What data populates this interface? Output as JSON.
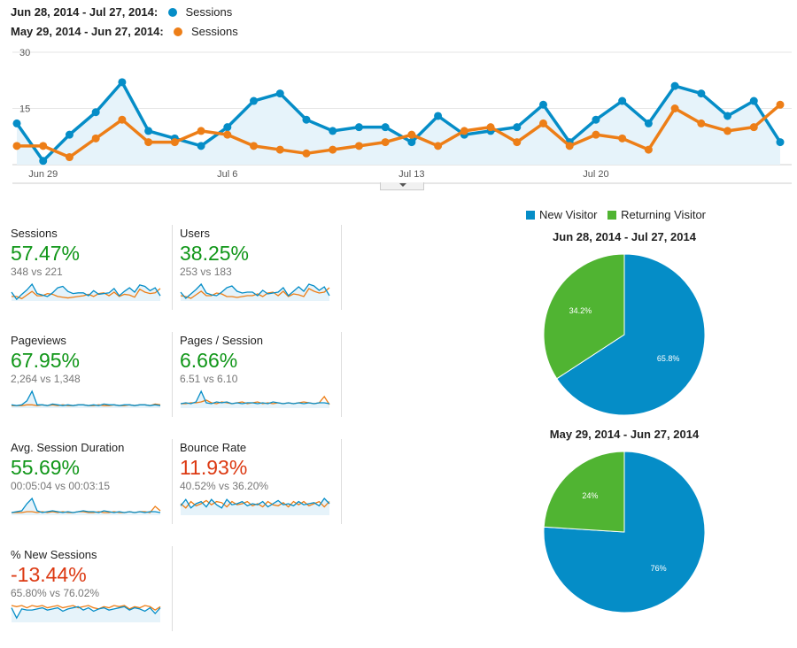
{
  "legend": [
    {
      "range": "Jun 28, 2014 - Jul 27, 2014:",
      "series": "Sessions",
      "color": "#058dc7"
    },
    {
      "range": "May 29, 2014 - Jun 27, 2014:",
      "series": "Sessions",
      "color": "#ed7e17"
    }
  ],
  "chart_data": {
    "type": "line",
    "ylim": [
      0,
      30
    ],
    "y_ticks": [
      "30",
      "15"
    ],
    "x_tick_labels": [
      {
        "index": 1,
        "label": "Jun 29"
      },
      {
        "index": 8,
        "label": "Jul 6"
      },
      {
        "index": 15,
        "label": "Jul 13"
      },
      {
        "index": 22,
        "label": "Jul 20"
      }
    ],
    "series": [
      {
        "name": "Sessions",
        "color": "#058dc7",
        "values": [
          11,
          1,
          8,
          14,
          22,
          9,
          7,
          5,
          10,
          17,
          19,
          12,
          9,
          10,
          10,
          6,
          13,
          8,
          9,
          10,
          16,
          6,
          12,
          17,
          11,
          21,
          19,
          13,
          17,
          6
        ]
      },
      {
        "name": "Sessions",
        "color": "#ed7e17",
        "values": [
          5,
          5,
          2,
          7,
          12,
          6,
          6,
          9,
          8,
          5,
          4,
          3,
          4,
          5,
          6,
          8,
          5,
          9,
          10,
          6,
          11,
          5,
          8,
          7,
          4,
          15,
          11,
          9,
          10,
          16
        ]
      }
    ]
  },
  "metrics": [
    {
      "name": "Sessions",
      "change": "57.47%",
      "direction": "up",
      "compare": "348 vs 221",
      "spark": {
        "a": [
          11,
          1,
          8,
          14,
          22,
          9,
          7,
          5,
          10,
          17,
          19,
          12,
          9,
          10,
          10,
          6,
          13,
          8,
          9,
          10,
          16,
          6,
          12,
          17,
          11,
          21,
          19,
          13,
          17,
          6
        ],
        "b": [
          5,
          5,
          2,
          7,
          12,
          6,
          6,
          9,
          8,
          5,
          4,
          3,
          4,
          5,
          6,
          8,
          5,
          9,
          10,
          6,
          11,
          5,
          8,
          7,
          4,
          15,
          11,
          9,
          10,
          16
        ]
      }
    },
    {
      "name": "Users",
      "change": "38.25%",
      "direction": "up",
      "compare": "253 vs 183",
      "spark": {
        "a": [
          9,
          2,
          7,
          12,
          18,
          8,
          6,
          5,
          9,
          14,
          16,
          10,
          8,
          9,
          9,
          5,
          11,
          7,
          8,
          9,
          14,
          5,
          10,
          15,
          10,
          18,
          16,
          11,
          15,
          5
        ],
        "b": [
          5,
          4,
          2,
          6,
          10,
          5,
          5,
          8,
          7,
          4,
          4,
          3,
          4,
          5,
          5,
          7,
          4,
          8,
          9,
          5,
          10,
          4,
          7,
          6,
          4,
          13,
          10,
          8,
          9,
          14
        ]
      }
    },
    {
      "name": "Pageviews",
      "change": "67.95%",
      "direction": "up",
      "compare": "2,264 vs 1,348",
      "spark": {
        "a": [
          3,
          2,
          3,
          8,
          20,
          3,
          3,
          2,
          4,
          3,
          2,
          3,
          2,
          3,
          3,
          2,
          3,
          2,
          4,
          3,
          3,
          2,
          3,
          3,
          2,
          3,
          3,
          2,
          3,
          2
        ],
        "b": [
          2,
          2,
          2,
          3,
          3,
          2,
          3,
          2,
          3,
          2,
          3,
          2,
          2,
          3,
          3,
          2,
          2,
          3,
          2,
          2,
          3,
          2,
          2,
          3,
          2,
          3,
          3,
          2,
          4,
          3
        ]
      }
    },
    {
      "name": "Pages / Session",
      "change": "6.66%",
      "direction": "up",
      "compare": "6.51 vs 6.10",
      "spark": {
        "a": [
          4,
          5,
          4,
          6,
          18,
          5,
          4,
          6,
          5,
          6,
          4,
          5,
          4,
          5,
          5,
          4,
          5,
          4,
          6,
          5,
          4,
          5,
          4,
          5,
          4,
          5,
          4,
          5,
          5,
          4
        ],
        "b": [
          4,
          4,
          5,
          5,
          6,
          8,
          5,
          4,
          6,
          5,
          4,
          5,
          6,
          4,
          5,
          6,
          4,
          5,
          4,
          5,
          4,
          5,
          4,
          5,
          6,
          5,
          4,
          5,
          12,
          3
        ]
      }
    },
    {
      "name": "Avg. Session Duration",
      "change": "55.69%",
      "direction": "up",
      "compare": "00:05:04 vs 00:03:15",
      "spark": {
        "a": [
          2,
          3,
          4,
          12,
          18,
          4,
          2,
          3,
          4,
          3,
          2,
          3,
          2,
          3,
          4,
          3,
          3,
          2,
          4,
          3,
          2,
          3,
          2,
          3,
          2,
          3,
          2,
          3,
          3,
          2
        ],
        "b": [
          2,
          2,
          2,
          3,
          3,
          2,
          3,
          2,
          3,
          2,
          3,
          2,
          2,
          3,
          3,
          2,
          2,
          3,
          2,
          2,
          3,
          2,
          2,
          3,
          2,
          3,
          3,
          2,
          9,
          4
        ]
      }
    },
    {
      "name": "Bounce Rate",
      "change": "11.93%",
      "direction": "down",
      "compare": "40.52% vs 36.20%",
      "spark": {
        "a": [
          8,
          14,
          6,
          10,
          12,
          7,
          14,
          9,
          6,
          14,
          9,
          10,
          12,
          8,
          10,
          9,
          12,
          7,
          10,
          13,
          9,
          10,
          8,
          12,
          9,
          10,
          11,
          8,
          15,
          10
        ],
        "b": [
          10,
          6,
          12,
          8,
          10,
          13,
          9,
          12,
          11,
          7,
          12,
          9,
          10,
          12,
          8,
          10,
          7,
          12,
          9,
          8,
          11,
          7,
          12,
          9,
          12,
          8,
          10,
          12,
          7,
          12
        ]
      }
    },
    {
      "name": "% New Sessions",
      "change": "-13.44%",
      "direction": "down",
      "compare": "65.80% vs 76.02%",
      "spark": {
        "a": [
          12,
          3,
          11,
          10,
          10,
          11,
          12,
          10,
          11,
          12,
          9,
          11,
          12,
          13,
          10,
          12,
          9,
          11,
          12,
          10,
          11,
          12,
          13,
          10,
          12,
          11,
          9,
          12,
          7,
          12
        ],
        "b": [
          14,
          13,
          14,
          12,
          14,
          13,
          14,
          12,
          13,
          14,
          12,
          13,
          14,
          12,
          13,
          14,
          12,
          11,
          13,
          12,
          14,
          13,
          14,
          11,
          13,
          12,
          14,
          13,
          10,
          13
        ]
      }
    }
  ],
  "pie_legend": [
    {
      "label": "New Visitor",
      "color": "#058dc7"
    },
    {
      "label": "Returning Visitor",
      "color": "#50b432"
    }
  ],
  "pies": [
    {
      "title": "Jun 28, 2014 - Jul 27, 2014",
      "slices": [
        {
          "label": "65.8%",
          "value": 65.8,
          "color": "#058dc7"
        },
        {
          "label": "34.2%",
          "value": 34.2,
          "color": "#50b432"
        }
      ]
    },
    {
      "title": "May 29, 2014 - Jun 27, 2014",
      "slices": [
        {
          "label": "76%",
          "value": 76,
          "color": "#058dc7"
        },
        {
          "label": "24%",
          "value": 24,
          "color": "#50b432"
        }
      ]
    }
  ]
}
